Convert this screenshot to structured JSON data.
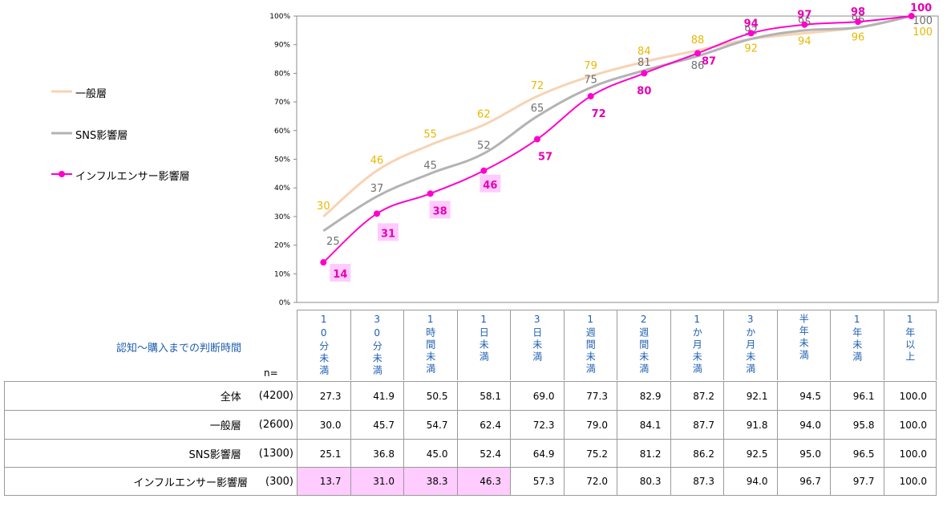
{
  "chart_data": {
    "type": "line",
    "categories": [
      "10分未満",
      "30分未満",
      "1時間未満",
      "1日未満",
      "3日未満",
      "1週間未満",
      "2週間未満",
      "1か月未満",
      "3か月未満",
      "半年未満",
      "1年未満",
      "1年以上"
    ],
    "yticks": [
      "0%",
      "10%",
      "20%",
      "30%",
      "40%",
      "50%",
      "60%",
      "70%",
      "80%",
      "90%",
      "100%"
    ],
    "ylim": [
      0,
      100
    ],
    "grid": false,
    "legend_position": "left",
    "series": [
      {
        "name": "一般層",
        "color": "#f7d3b4",
        "label_color": "#e8b800",
        "marker": false,
        "values": [
          30,
          46,
          55,
          62,
          72,
          79,
          84,
          88,
          92,
          94,
          96,
          100
        ],
        "labels": [
          "30",
          "46",
          "55",
          "62",
          "72",
          "79",
          "84",
          "88",
          "92",
          "94",
          "96",
          "100"
        ]
      },
      {
        "name": "SNS影響層",
        "color": "#b3b3b3",
        "label_color": "#707070",
        "marker": false,
        "values": [
          25,
          37,
          45,
          52,
          65,
          75,
          81,
          86,
          92,
          95,
          96,
          100
        ],
        "labels": [
          "25",
          "37",
          "45",
          "52",
          "65",
          "75",
          "81",
          "86",
          "92",
          "95",
          "96",
          "100"
        ]
      },
      {
        "name": "インフルエンサー影響層",
        "color": "#ff00cc",
        "label_color": "#e600b4",
        "marker": true,
        "values": [
          14,
          31,
          38,
          46,
          57,
          72,
          80,
          87,
          94,
          97,
          98,
          100
        ],
        "labels": [
          "14",
          "31",
          "38",
          "46",
          "57",
          "72",
          "80",
          "87",
          "94",
          "97",
          "98",
          "100"
        ],
        "highlighted": [
          0,
          1,
          2,
          3
        ]
      }
    ]
  },
  "table": {
    "caption": "認知～購入までの判断時間",
    "n_label": "n=",
    "headers": [
      "10分未満",
      "30分未満",
      "1時間未満",
      "1日未満",
      "3日未満",
      "1週間未満",
      "2週間未満",
      "1か月未満",
      "3か月未満",
      "半年未満",
      "1年未満",
      "1年以上"
    ],
    "rows": [
      {
        "name": "全体",
        "n": "(4200)",
        "values": [
          "27.3",
          "41.9",
          "50.5",
          "58.1",
          "69.0",
          "77.3",
          "82.9",
          "87.2",
          "92.1",
          "94.5",
          "96.1",
          "100.0"
        ]
      },
      {
        "name": "一般層",
        "n": "(2600)",
        "values": [
          "30.0",
          "45.7",
          "54.7",
          "62.4",
          "72.3",
          "79.0",
          "84.1",
          "87.7",
          "91.8",
          "94.0",
          "95.8",
          "100.0"
        ]
      },
      {
        "name": "SNS影響層",
        "n": "(1300)",
        "values": [
          "25.1",
          "36.8",
          "45.0",
          "52.4",
          "64.9",
          "75.2",
          "81.2",
          "86.2",
          "92.5",
          "95.0",
          "96.5",
          "100.0"
        ]
      },
      {
        "name": "インフルエンサー影響層",
        "n": "(300)",
        "values": [
          "13.7",
          "31.0",
          "38.3",
          "46.3",
          "57.3",
          "72.0",
          "80.3",
          "87.3",
          "94.0",
          "96.7",
          "97.7",
          "100.0"
        ],
        "highlighted": [
          0,
          1,
          2,
          3
        ]
      }
    ],
    "highlight_color": "#ffccff"
  }
}
